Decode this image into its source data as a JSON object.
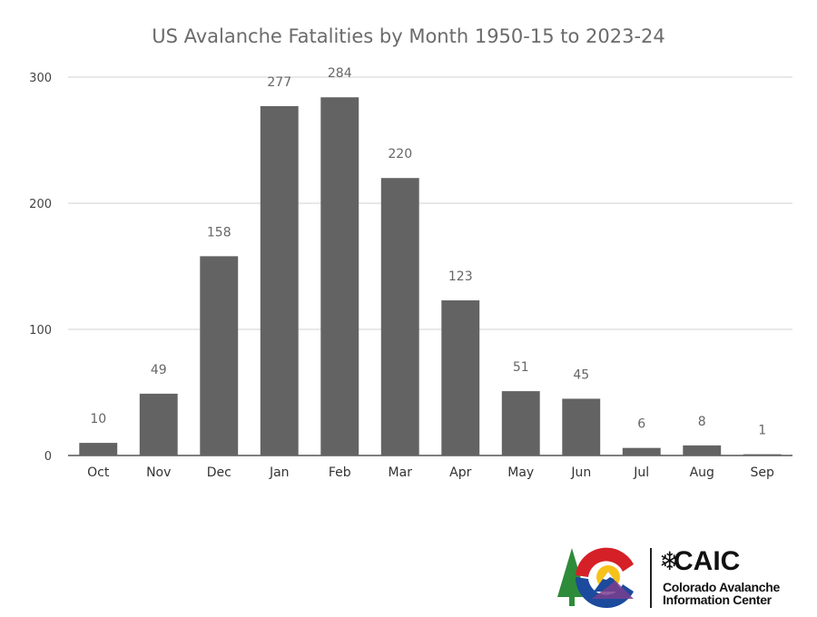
{
  "chart_data": {
    "type": "bar",
    "title": "US Avalanche Fatalities by Month 1950-15 to 2023-24",
    "categories": [
      "Oct",
      "Nov",
      "Dec",
      "Jan",
      "Feb",
      "Mar",
      "Apr",
      "May",
      "Jun",
      "Jul",
      "Aug",
      "Sep"
    ],
    "values": [
      10,
      49,
      158,
      277,
      284,
      220,
      123,
      51,
      45,
      6,
      8,
      1
    ],
    "data_labels": [
      "10",
      "49",
      "158",
      "277",
      "284",
      "220",
      "123",
      "51",
      "45",
      "6",
      "8",
      "1"
    ],
    "ylim": [
      0,
      300
    ],
    "yticks": [
      0,
      100,
      200,
      300
    ],
    "ytick_labels": [
      "0",
      "100",
      "200",
      "300"
    ],
    "xlabel": "",
    "ylabel": "",
    "grid": true,
    "bar_color": "#636363"
  },
  "logo": {
    "acronym": "CAIC",
    "name_line1": "Colorado Avalanche",
    "name_line2": "Information Center",
    "snowflake_icon": "snowflake-icon",
    "colors": {
      "red": "#d62027",
      "blue": "#1c4a9c",
      "yellow": "#f6c21a",
      "green": "#2e8b3a"
    }
  }
}
